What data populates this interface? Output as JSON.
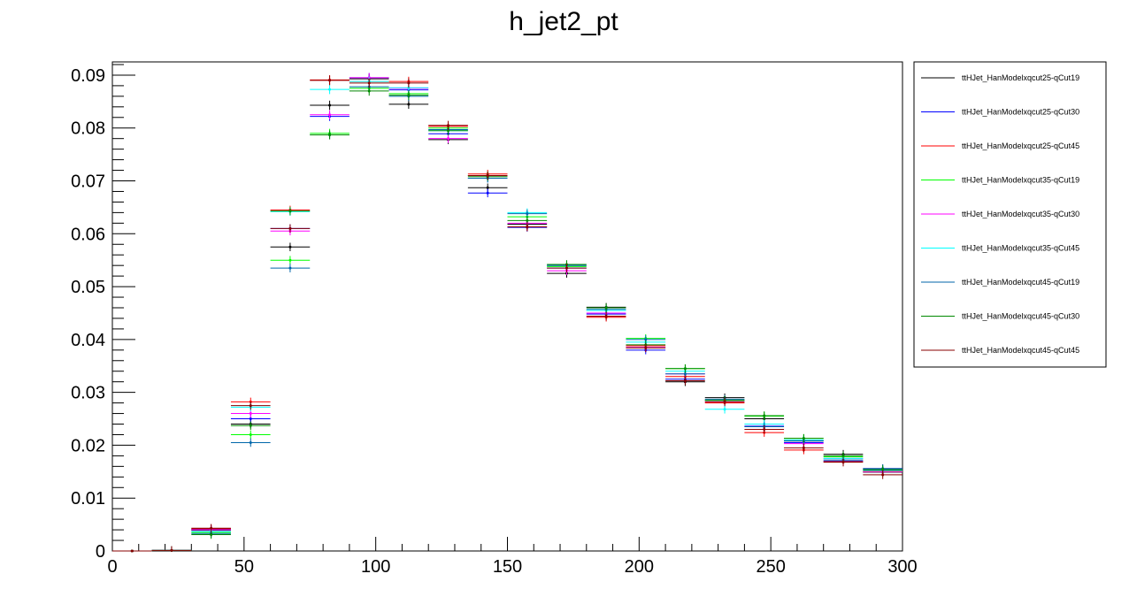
{
  "chart_data": {
    "type": "scatter",
    "title": "h_jet2_pt",
    "xlabel": "",
    "ylabel": "",
    "xlim": [
      0,
      300
    ],
    "ylim": [
      0,
      0.0925
    ],
    "grid": false,
    "legend_position": "right",
    "x_ticks": [
      0,
      50,
      100,
      150,
      200,
      250,
      300
    ],
    "x_tick_labels": [
      "0",
      "50",
      "100",
      "150",
      "200",
      "250",
      "300"
    ],
    "y_ticks": [
      0,
      0.01,
      0.02,
      0.03,
      0.04,
      0.05,
      0.06,
      0.07,
      0.08,
      0.09
    ],
    "y_tick_labels": [
      "0",
      "0.01",
      "0.02",
      "0.03",
      "0.04",
      "0.05",
      "0.06",
      "0.07",
      "0.08",
      "0.09"
    ],
    "bin_width": 15,
    "x": [
      7.5,
      22.5,
      37.5,
      52.5,
      67.5,
      82.5,
      97.5,
      112.5,
      127.5,
      142.5,
      157.5,
      172.5,
      187.5,
      202.5,
      217.5,
      232.5,
      247.5,
      262.5,
      277.5,
      292.5
    ],
    "series": [
      {
        "name": "ttHJet_HanModelxqcut25-qCut19",
        "color": "#000000",
        "values": [
          0,
          0.0001,
          0.0039,
          0.024,
          0.0575,
          0.0843,
          0.0893,
          0.0845,
          0.0778,
          0.0687,
          0.0618,
          0.0525,
          0.0461,
          0.0385,
          0.032,
          0.029,
          0.025,
          0.0208,
          0.0183,
          0.0149
        ]
      },
      {
        "name": "ttHJet_HanModelxqcut25-qCut30",
        "color": "#0000ff",
        "values": [
          0,
          0.0001,
          0.0041,
          0.025,
          0.061,
          0.0822,
          0.0895,
          0.0872,
          0.0789,
          0.0677,
          0.0612,
          0.0535,
          0.0448,
          0.038,
          0.0325,
          0.0285,
          0.0236,
          0.0205,
          0.017,
          0.0156
        ]
      },
      {
        "name": "ttHJet_HanModelxqcut25-qCut45",
        "color": "#ff0000",
        "values": [
          0,
          0.0001,
          0.0042,
          0.0282,
          0.0645,
          0.0891,
          0.0888,
          0.0888,
          0.0803,
          0.0713,
          0.0613,
          0.054,
          0.0442,
          0.0388,
          0.033,
          0.028,
          0.0224,
          0.0191,
          0.0169,
          0.015
        ]
      },
      {
        "name": "ttHJet_HanModelxqcut35-qCut19",
        "color": "#00ff00",
        "values": [
          0,
          0.0001,
          0.0035,
          0.022,
          0.055,
          0.079,
          0.0875,
          0.0865,
          0.08,
          0.071,
          0.0632,
          0.0538,
          0.0455,
          0.0402,
          0.0345,
          0.0285,
          0.0255,
          0.0213,
          0.0178,
          0.0152
        ]
      },
      {
        "name": "ttHJet_HanModelxqcut35-qCut30",
        "color": "#ff00ff",
        "values": [
          0,
          0.0001,
          0.004,
          0.026,
          0.0605,
          0.0825,
          0.0895,
          0.0875,
          0.078,
          0.0705,
          0.062,
          0.053,
          0.045,
          0.0385,
          0.0335,
          0.0282,
          0.0235,
          0.0203,
          0.0175,
          0.015
        ]
      },
      {
        "name": "ttHJet_HanModelxqcut35-qCut45",
        "color": "#00ffff",
        "values": [
          0,
          0.0001,
          0.0037,
          0.0272,
          0.0642,
          0.0873,
          0.0888,
          0.0876,
          0.0795,
          0.0705,
          0.064,
          0.054,
          0.0455,
          0.0395,
          0.034,
          0.0268,
          0.024,
          0.021,
          0.0175,
          0.0155
        ]
      },
      {
        "name": "ttHJet_HanModelxqcut45-qCut19",
        "color": "#0066aa",
        "values": [
          0,
          0.0001,
          0.0033,
          0.0205,
          0.0535,
          0.0787,
          0.0878,
          0.086,
          0.0797,
          0.0705,
          0.0638,
          0.054,
          0.0457,
          0.04,
          0.0335,
          0.0287,
          0.0235,
          0.0208,
          0.0172,
          0.0153
        ]
      },
      {
        "name": "ttHJet_HanModelxqcut45-qCut30",
        "color": "#008800",
        "values": [
          0,
          0.0001,
          0.0031,
          0.0237,
          0.0643,
          0.0787,
          0.087,
          0.0862,
          0.0795,
          0.0708,
          0.0625,
          0.0542,
          0.046,
          0.039,
          0.0345,
          0.0285,
          0.0256,
          0.0213,
          0.018,
          0.0155
        ]
      },
      {
        "name": "ttHJet_HanModelxqcut45-qCut45",
        "color": "#880000",
        "values": [
          0,
          0.0001,
          0.0043,
          0.0275,
          0.061,
          0.089,
          0.0885,
          0.0885,
          0.0805,
          0.071,
          0.0613,
          0.0535,
          0.0444,
          0.0384,
          0.0322,
          0.0282,
          0.023,
          0.0195,
          0.0168,
          0.0144
        ]
      }
    ]
  }
}
